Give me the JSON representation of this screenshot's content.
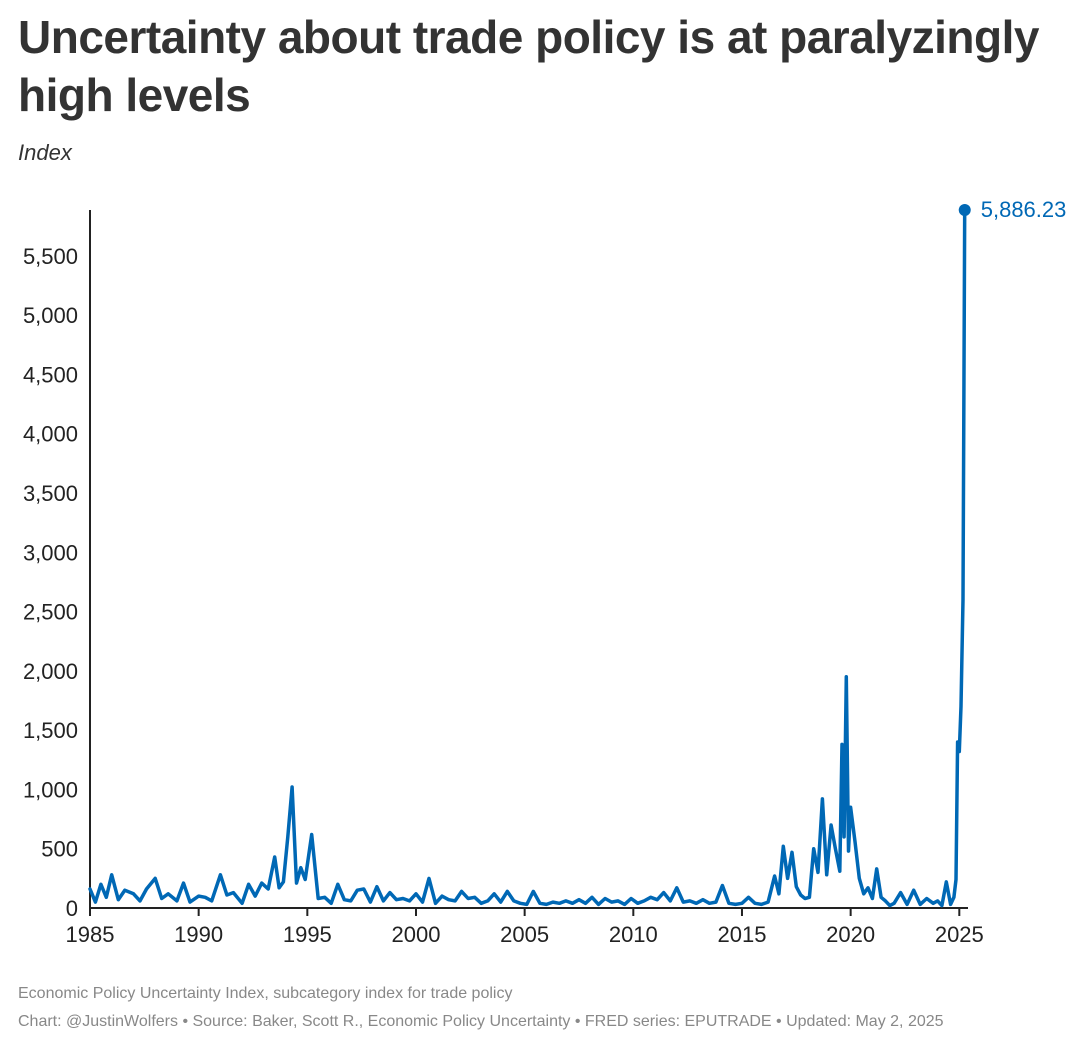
{
  "title": "Uncertainty about trade policy is at paralyzingly high levels",
  "subtitle": "Index",
  "footnote": "Economic Policy Uncertainty Index, subcategory index for trade policy",
  "credit": "Chart: @JustinWolfers • Source: Baker, Scott R., Economic Policy Uncertainty • FRED series: EPUTRADE • Updated: May 2, 2025",
  "colors": {
    "line": "#0068b5",
    "axis": "#222222",
    "text": "#333333"
  },
  "chart_data": {
    "type": "line",
    "title": "Uncertainty about trade policy is at paralyzingly high levels",
    "ylabel": "Index",
    "xlabel": "",
    "xlim": [
      1985,
      2025.4
    ],
    "ylim": [
      0,
      5886.23
    ],
    "grid": false,
    "x_ticks": [
      1985,
      1990,
      1995,
      2000,
      2005,
      2010,
      2015,
      2020,
      2025
    ],
    "x_tick_labels": [
      "1985",
      "1990",
      "1995",
      "2000",
      "2005",
      "2010",
      "2015",
      "2020",
      "2025"
    ],
    "y_ticks": [
      0,
      500,
      1000,
      1500,
      2000,
      2500,
      3000,
      3500,
      4000,
      4500,
      5000,
      5500
    ],
    "y_tick_labels": [
      "0",
      "500",
      "1,000",
      "1,500",
      "2,000",
      "2,500",
      "3,000",
      "3,500",
      "4,000",
      "4,500",
      "5,000",
      "5,500"
    ],
    "series": [
      {
        "name": "EPUTRADE",
        "x": [
          1985.0,
          1985.25,
          1985.5,
          1985.75,
          1986.0,
          1986.3,
          1986.6,
          1987.0,
          1987.3,
          1987.6,
          1988.0,
          1988.3,
          1988.6,
          1989.0,
          1989.3,
          1989.6,
          1990.0,
          1990.3,
          1990.6,
          1991.0,
          1991.3,
          1991.6,
          1992.0,
          1992.3,
          1992.6,
          1992.9,
          1993.2,
          1993.5,
          1993.7,
          1993.9,
          1994.1,
          1994.3,
          1994.5,
          1994.7,
          1994.9,
          1995.2,
          1995.5,
          1995.8,
          1996.1,
          1996.4,
          1996.7,
          1997.0,
          1997.3,
          1997.6,
          1997.9,
          1998.2,
          1998.5,
          1998.8,
          1999.1,
          1999.4,
          1999.7,
          2000.0,
          2000.3,
          2000.6,
          2000.9,
          2001.2,
          2001.5,
          2001.8,
          2002.1,
          2002.4,
          2002.7,
          2003.0,
          2003.3,
          2003.6,
          2003.9,
          2004.2,
          2004.5,
          2004.8,
          2005.1,
          2005.4,
          2005.7,
          2006.0,
          2006.3,
          2006.6,
          2006.9,
          2007.2,
          2007.5,
          2007.8,
          2008.1,
          2008.4,
          2008.7,
          2009.0,
          2009.3,
          2009.6,
          2009.9,
          2010.2,
          2010.5,
          2010.8,
          2011.1,
          2011.4,
          2011.7,
          2012.0,
          2012.3,
          2012.6,
          2012.9,
          2013.2,
          2013.5,
          2013.8,
          2014.1,
          2014.4,
          2014.7,
          2015.0,
          2015.3,
          2015.6,
          2015.9,
          2016.2,
          2016.5,
          2016.7,
          2016.9,
          2017.1,
          2017.3,
          2017.5,
          2017.7,
          2017.9,
          2018.1,
          2018.3,
          2018.5,
          2018.7,
          2018.9,
          2019.1,
          2019.3,
          2019.5,
          2019.6,
          2019.7,
          2019.8,
          2019.9,
          2020.0,
          2020.2,
          2020.4,
          2020.6,
          2020.8,
          2021.0,
          2021.2,
          2021.4,
          2021.6,
          2021.8,
          2022.0,
          2022.3,
          2022.6,
          2022.9,
          2023.2,
          2023.5,
          2023.8,
          2024.0,
          2024.2,
          2024.4,
          2024.6,
          2024.75,
          2024.85,
          2024.92,
          2025.0,
          2025.08,
          2025.17,
          2025.25
        ],
        "values": [
          160,
          50,
          200,
          90,
          280,
          70,
          150,
          120,
          60,
          160,
          250,
          80,
          120,
          60,
          210,
          50,
          100,
          90,
          60,
          280,
          110,
          130,
          40,
          200,
          100,
          210,
          160,
          430,
          170,
          220,
          600,
          1020,
          210,
          340,
          240,
          620,
          80,
          90,
          40,
          200,
          70,
          60,
          150,
          160,
          50,
          180,
          60,
          130,
          70,
          80,
          60,
          120,
          50,
          250,
          40,
          100,
          70,
          60,
          140,
          80,
          90,
          40,
          60,
          120,
          50,
          140,
          60,
          40,
          30,
          140,
          40,
          30,
          50,
          40,
          60,
          40,
          70,
          40,
          90,
          30,
          80,
          50,
          60,
          30,
          80,
          40,
          60,
          90,
          70,
          130,
          60,
          170,
          50,
          60,
          40,
          70,
          40,
          50,
          190,
          40,
          30,
          40,
          90,
          40,
          30,
          50,
          270,
          120,
          520,
          250,
          470,
          180,
          110,
          80,
          90,
          500,
          300,
          920,
          280,
          700,
          500,
          310,
          1380,
          600,
          1950,
          480,
          850,
          560,
          250,
          120,
          170,
          80,
          330,
          90,
          60,
          20,
          40,
          130,
          30,
          150,
          30,
          80,
          40,
          60,
          20,
          220,
          30,
          90,
          240,
          1400,
          1320,
          1700,
          2600,
          5886.23
        ]
      }
    ],
    "annotations": [
      {
        "x": 2025.25,
        "y": 5886.23,
        "text": "5,886.23"
      }
    ]
  }
}
